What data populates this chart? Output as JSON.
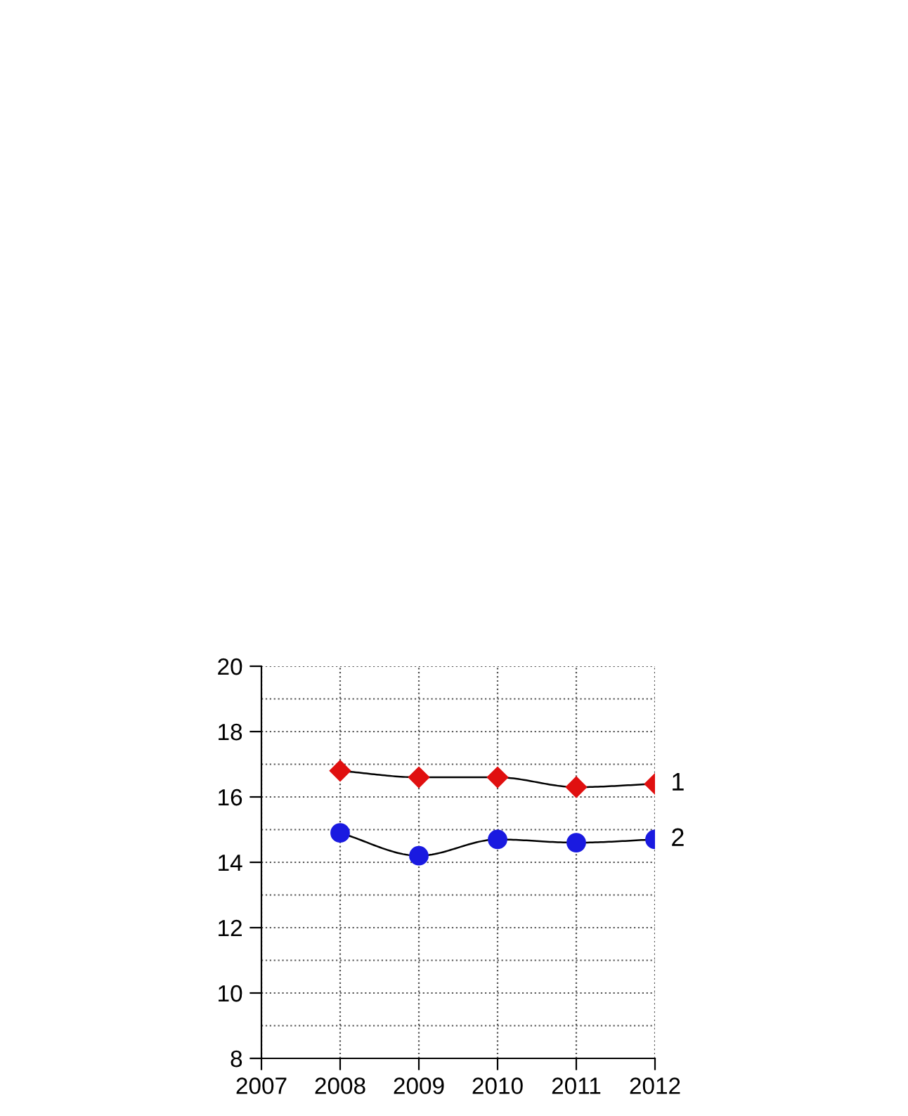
{
  "chart_data": {
    "type": "line",
    "x": [
      2008,
      2009,
      2010,
      2011,
      2012
    ],
    "series": [
      {
        "name": "1",
        "color": "#e01010",
        "marker": "diamond",
        "values": [
          16.8,
          16.6,
          16.6,
          16.3,
          16.4
        ]
      },
      {
        "name": "2",
        "color": "#1a1ae0",
        "marker": "circle",
        "values": [
          14.9,
          14.2,
          14.7,
          14.6,
          14.7
        ]
      }
    ],
    "xlim": [
      2007,
      2012
    ],
    "xticks": [
      2007,
      2008,
      2009,
      2010,
      2011,
      2012
    ],
    "ylim": [
      8,
      20
    ],
    "yticks": [
      8,
      {
        "value": 9,
        "label": null
      },
      10,
      {
        "value": 11,
        "label": null
      },
      12,
      {
        "value": 13,
        "label": null
      },
      14,
      {
        "value": 15,
        "label": null
      },
      16,
      {
        "value": 17,
        "label": null
      },
      18,
      {
        "value": 19,
        "label": null
      },
      20
    ],
    "grid": true,
    "legend": false
  }
}
